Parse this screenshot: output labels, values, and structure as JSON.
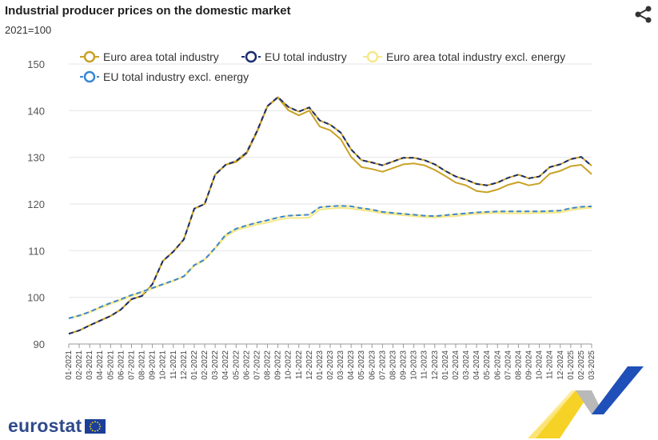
{
  "header": {
    "title": "Industrial producer prices on the domestic market",
    "subtitle": "2021=100",
    "share_icon": "share-icon"
  },
  "footer": {
    "logo_text": "eurostat",
    "flag_icon": "eu-flag-icon"
  },
  "colors": {
    "euro_area": "#c9a227",
    "eu": "#1a2d6e",
    "euro_area_excl": "#f5e88a",
    "eu_excl": "#3a86d4",
    "grid": "#e6e6e6",
    "axis": "#999999"
  },
  "chart_data": {
    "type": "line",
    "title": "Industrial producer prices on the domestic market",
    "subtitle": "2021=100",
    "xlabel": "",
    "ylabel": "",
    "ylim": [
      90,
      150
    ],
    "yticks": [
      90,
      100,
      110,
      120,
      130,
      140,
      150
    ],
    "grid": true,
    "legend_position": "top",
    "x": [
      "01-2021",
      "02-2021",
      "03-2021",
      "04-2021",
      "05-2021",
      "06-2021",
      "07-2021",
      "08-2021",
      "09-2021",
      "10-2021",
      "11-2021",
      "12-2021",
      "01-2022",
      "02-2022",
      "03-2022",
      "04-2022",
      "05-2022",
      "06-2022",
      "07-2022",
      "08-2022",
      "09-2022",
      "10-2022",
      "11-2022",
      "12-2022",
      "01-2023",
      "02-2023",
      "03-2023",
      "04-2023",
      "05-2023",
      "06-2023",
      "07-2023",
      "08-2023",
      "09-2023",
      "10-2023",
      "11-2023",
      "12-2023",
      "01-2024",
      "02-2024",
      "03-2024",
      "04-2024",
      "05-2024",
      "06-2024",
      "07-2024",
      "08-2024",
      "09-2024",
      "10-2024",
      "11-2024",
      "12-2024",
      "01-2025",
      "02-2025",
      "03-2025"
    ],
    "series": [
      {
        "name": "Euro area total industry",
        "style": "solid",
        "color": "#c9a227",
        "values": [
          92.2,
          92.9,
          94.0,
          95.0,
          96.0,
          97.4,
          99.6,
          100.3,
          102.8,
          107.8,
          109.8,
          112.4,
          119.0,
          120.0,
          126.3,
          128.4,
          129.0,
          130.8,
          135.4,
          140.9,
          142.8,
          140.1,
          139.0,
          140.0,
          136.6,
          135.8,
          133.9,
          130.1,
          127.9,
          127.5,
          126.9,
          127.7,
          128.5,
          128.7,
          128.3,
          127.3,
          126.0,
          124.6,
          124.0,
          122.8,
          122.5,
          123.1,
          124.1,
          124.7,
          124.0,
          124.4,
          126.5,
          127.1,
          128.1,
          128.4,
          126.4
        ]
      },
      {
        "name": "EU total industry",
        "style": "dashed",
        "color": "#1a2d6e",
        "values": [
          92.2,
          92.9,
          94.0,
          95.0,
          96.0,
          97.4,
          99.6,
          100.3,
          102.8,
          107.8,
          109.8,
          112.4,
          119.0,
          120.0,
          126.3,
          128.4,
          129.2,
          131.0,
          135.6,
          141.0,
          142.9,
          140.8,
          139.8,
          140.7,
          137.9,
          137.0,
          135.3,
          131.7,
          129.4,
          128.9,
          128.3,
          129.1,
          129.9,
          129.9,
          129.4,
          128.5,
          127.1,
          125.9,
          125.2,
          124.3,
          124.0,
          124.6,
          125.6,
          126.3,
          125.5,
          125.9,
          127.9,
          128.5,
          129.6,
          130.1,
          128.2
        ]
      },
      {
        "name": "Euro area total industry excl. energy",
        "style": "solid",
        "color": "#f5e88a",
        "values": [
          95.5,
          96.0,
          96.8,
          97.7,
          98.6,
          99.4,
          100.3,
          101.0,
          101.9,
          102.7,
          103.5,
          104.4,
          106.7,
          108.0,
          110.4,
          113.0,
          114.4,
          115.0,
          115.6,
          116.0,
          116.6,
          117.0,
          117.0,
          117.1,
          118.8,
          119.0,
          119.2,
          119.0,
          118.7,
          118.4,
          118.0,
          117.8,
          117.6,
          117.4,
          117.2,
          117.1,
          117.3,
          117.4,
          117.7,
          117.9,
          118.0,
          118.1,
          118.0,
          118.0,
          118.0,
          118.1,
          118.1,
          118.2,
          118.7,
          119.0,
          119.2
        ]
      },
      {
        "name": "EU total industry excl. energy",
        "style": "dashed",
        "color": "#3a86d4",
        "values": [
          95.5,
          96.1,
          96.9,
          97.9,
          98.8,
          99.6,
          100.5,
          101.2,
          102.0,
          102.8,
          103.6,
          104.5,
          106.9,
          108.1,
          110.6,
          113.4,
          114.7,
          115.4,
          116.0,
          116.5,
          117.1,
          117.5,
          117.6,
          117.7,
          119.3,
          119.5,
          119.6,
          119.5,
          119.1,
          118.8,
          118.3,
          118.1,
          117.9,
          117.7,
          117.5,
          117.4,
          117.6,
          117.8,
          118.0,
          118.2,
          118.3,
          118.4,
          118.4,
          118.4,
          118.4,
          118.4,
          118.5,
          118.6,
          119.1,
          119.4,
          119.5
        ]
      }
    ]
  }
}
